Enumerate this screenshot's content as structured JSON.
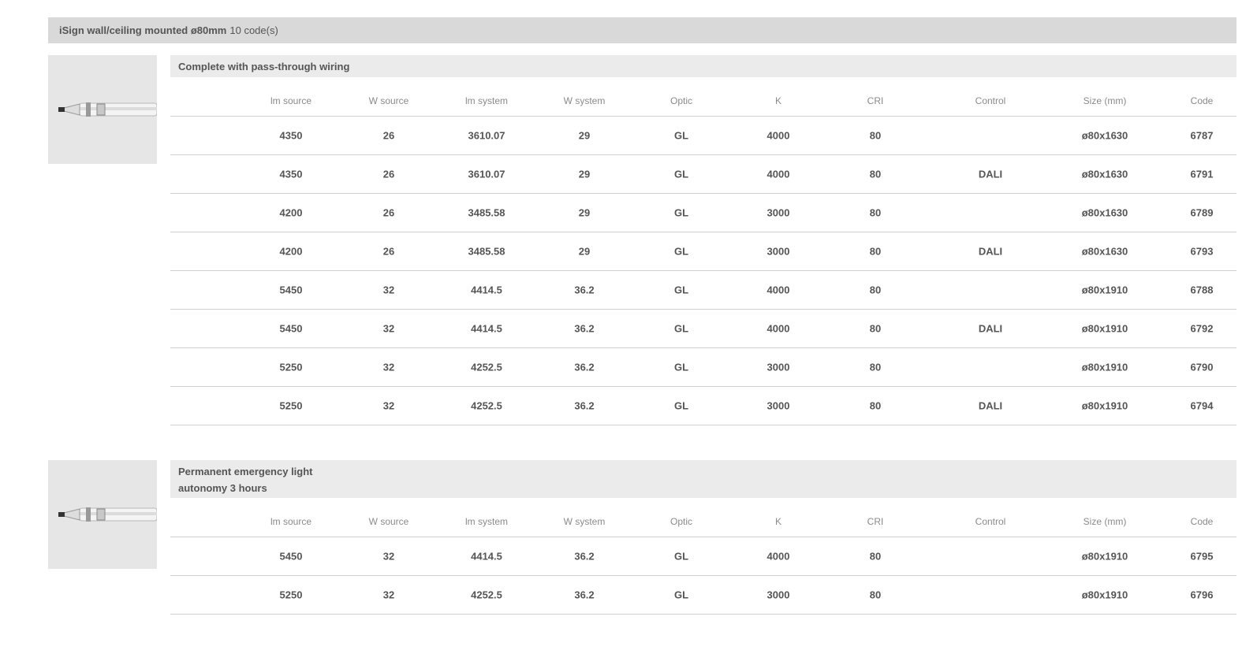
{
  "header": {
    "title": "iSign wall/ceiling mounted ø80mm",
    "count": "10 code(s)"
  },
  "groups": [
    {
      "title_lines": [
        "Complete with pass-through wiring"
      ],
      "columns": [
        "lm source",
        "W source",
        "lm system",
        "W system",
        "Optic",
        "K",
        "CRI",
        "Control",
        "Size (mm)",
        "Code"
      ],
      "rows": [
        [
          "4350",
          "26",
          "3610.07",
          "29",
          "GL",
          "4000",
          "80",
          null,
          "ø80x1630",
          "6787"
        ],
        [
          "4350",
          "26",
          "3610.07",
          "29",
          "GL",
          "4000",
          "80",
          "DALI",
          "ø80x1630",
          "6791"
        ],
        [
          "4200",
          "26",
          "3485.58",
          "29",
          "GL",
          "3000",
          "80",
          null,
          "ø80x1630",
          "6789"
        ],
        [
          "4200",
          "26",
          "3485.58",
          "29",
          "GL",
          "3000",
          "80",
          "DALI",
          "ø80x1630",
          "6793"
        ],
        [
          "5450",
          "32",
          "4414.5",
          "36.2",
          "GL",
          "4000",
          "80",
          null,
          "ø80x1910",
          "6788"
        ],
        [
          "5450",
          "32",
          "4414.5",
          "36.2",
          "GL",
          "4000",
          "80",
          "DALI",
          "ø80x1910",
          "6792"
        ],
        [
          "5250",
          "32",
          "4252.5",
          "36.2",
          "GL",
          "3000",
          "80",
          null,
          "ø80x1910",
          "6790"
        ],
        [
          "5250",
          "32",
          "4252.5",
          "36.2",
          "GL",
          "3000",
          "80",
          "DALI",
          "ø80x1910",
          "6794"
        ]
      ]
    },
    {
      "title_lines": [
        "Permanent emergency light",
        "autonomy 3 hours"
      ],
      "columns": [
        "lm source",
        "W source",
        "lm system",
        "W system",
        "Optic",
        "K",
        "CRI",
        "Control",
        "Size (mm)",
        "Code"
      ],
      "rows": [
        [
          "5450",
          "32",
          "4414.5",
          "36.2",
          "GL",
          "4000",
          "80",
          null,
          "ø80x1910",
          "6795"
        ],
        [
          "5250",
          "32",
          "4252.5",
          "36.2",
          "GL",
          "3000",
          "80",
          null,
          "ø80x1910",
          "6796"
        ]
      ]
    }
  ]
}
